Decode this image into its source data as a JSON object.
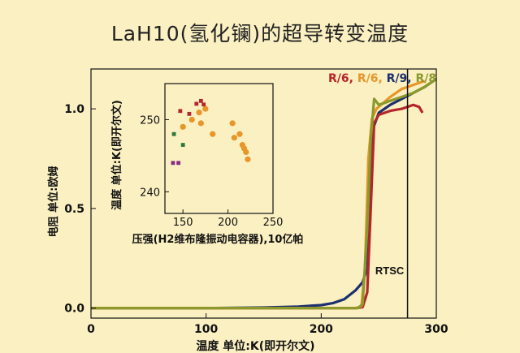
{
  "title": "LaH10(氢化镧)的超导转变温度",
  "colors": {
    "background": "#fbf0c2",
    "dark_red": "#b5262c",
    "orange": "#e8952a",
    "navy": "#1d2f6e",
    "olive": "#8a9a2c",
    "purple": "#8a2c86",
    "green": "#2a7a3a"
  },
  "chart_data": [
    {
      "type": "line",
      "xlabel": "温度 单位:K(即开尔文)",
      "ylabel": "电阻 单位:欧姆",
      "xlim": [
        0,
        300
      ],
      "ylim": [
        -0.05,
        1.2
      ],
      "xticks": [
        "0",
        "100",
        "200",
        "300"
      ],
      "yticks": [
        "0.0",
        "0.5",
        "1.0"
      ],
      "legend": {
        "placement": "top-right",
        "entries": [
          {
            "text": "R/6,",
            "color": "#b5262c"
          },
          {
            "text": "R/6,",
            "color": "#e8952a"
          },
          {
            "text": "R/9,",
            "color": "#1d2f6e"
          },
          {
            "text": "R/8",
            "color": "#8a9a2c"
          }
        ]
      },
      "annotation": {
        "text": "RTSC",
        "x": 275,
        "line_type": "vertical"
      },
      "series": [
        {
          "color": "#1d2f6e",
          "x": [
            0,
            50,
            100,
            150,
            180,
            200,
            210,
            220,
            230,
            236,
            240,
            243,
            245,
            250,
            260,
            270,
            280,
            290,
            300
          ],
          "y": [
            0.0,
            0.0,
            0.0,
            0.003,
            0.008,
            0.015,
            0.025,
            0.045,
            0.09,
            0.13,
            0.2,
            0.55,
            0.9,
            0.98,
            1.02,
            1.05,
            1.08,
            1.11,
            1.15
          ]
        },
        {
          "color": "#b5262c",
          "x": [
            0,
            100,
            200,
            230,
            236,
            240,
            243,
            246,
            250,
            260,
            270,
            275,
            280,
            285,
            288
          ],
          "y": [
            0.0,
            0.0,
            0.0,
            0.0,
            0.005,
            0.08,
            0.5,
            0.93,
            0.97,
            0.99,
            1.0,
            1.01,
            1.02,
            1.01,
            0.98
          ]
        },
        {
          "color": "#e8952a",
          "x": [
            0,
            100,
            200,
            230,
            235,
            238,
            241,
            244,
            248,
            252,
            260,
            270,
            280,
            290
          ],
          "y": [
            0.0,
            0.0,
            0.0,
            0.0,
            0.01,
            0.2,
            0.75,
            0.95,
            1.0,
            1.02,
            1.06,
            1.1,
            1.12,
            1.14
          ]
        },
        {
          "color": "#8a9a2c",
          "x": [
            0,
            100,
            200,
            232,
            236,
            240,
            243,
            246,
            250,
            255,
            260,
            270,
            275,
            280,
            290,
            300
          ],
          "y": [
            0.0,
            0.0,
            0.0,
            0.0,
            0.02,
            0.4,
            0.85,
            1.05,
            1.02,
            1.03,
            1.04,
            1.06,
            1.07,
            1.08,
            1.11,
            1.15
          ]
        }
      ]
    },
    {
      "type": "scatter",
      "xlabel": "压强(H2维布隆振动电容器),10亿帕",
      "ylabel": "温度 单位:K(即开尔文)",
      "xlim": [
        130,
        250
      ],
      "ylim": [
        237,
        255
      ],
      "xticks": [
        "150",
        "200",
        "250"
      ],
      "yticks": [
        "240",
        "250"
      ],
      "series": [
        {
          "color": "#e8952a",
          "x": [
            150,
            160,
            168,
            170,
            175,
            183,
            205,
            207,
            213,
            216,
            218,
            220,
            222
          ],
          "y": [
            249,
            250,
            251,
            249.5,
            251.5,
            248,
            249.5,
            247.5,
            248,
            246.5,
            246,
            245.5,
            244.5
          ]
        },
        {
          "color": "#b5262c",
          "x": [
            147,
            157,
            165,
            170,
            173
          ],
          "y": [
            251.2,
            250.8,
            252.2,
            252.6,
            252.1
          ]
        },
        {
          "color": "#2a7a3a",
          "x": [
            140,
            150
          ],
          "y": [
            248,
            246.5
          ]
        },
        {
          "color": "#8a2c86",
          "x": [
            139,
            145
          ],
          "y": [
            244,
            244
          ]
        }
      ]
    }
  ]
}
